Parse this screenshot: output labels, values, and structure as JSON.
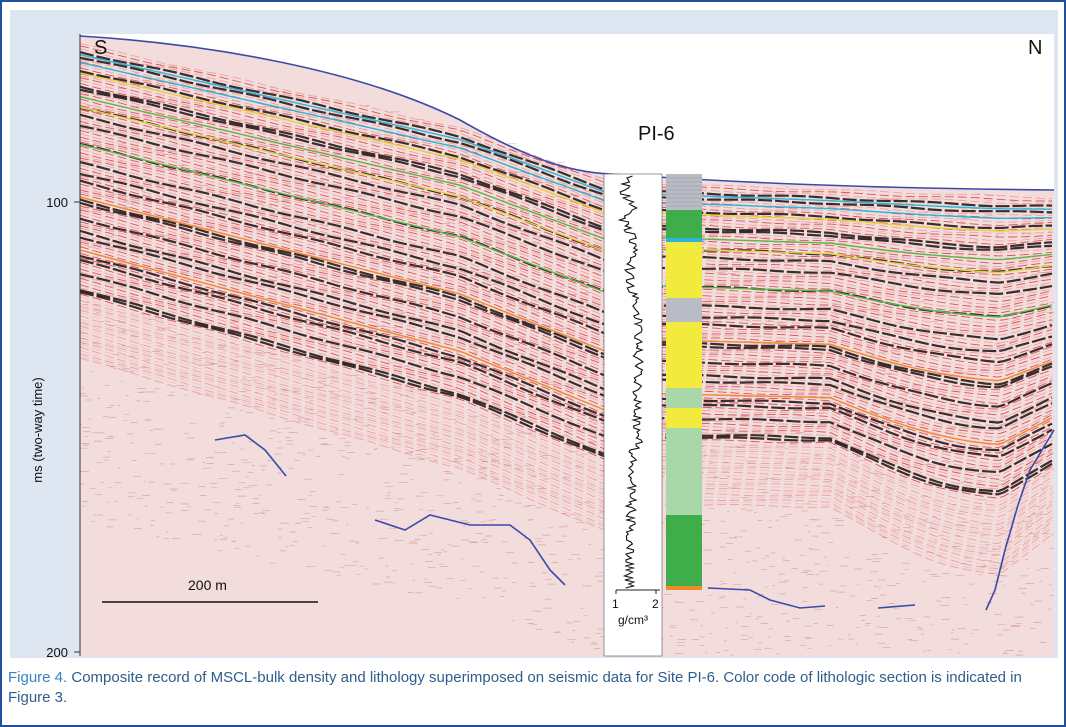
{
  "figure": {
    "direction_left": "S",
    "direction_right": "N",
    "site_label": "PI-6",
    "y_axis": {
      "label": "ms (two-way time)",
      "ticks": [
        "100",
        "200"
      ]
    },
    "scale_bar": {
      "label": "200 m"
    },
    "density_axis": {
      "ticks": [
        "1",
        "2"
      ],
      "unit": "g/cm³"
    }
  },
  "caption": {
    "figure_number": "Figure 4.",
    "text": " Composite record of MSCL-bulk density  and lithology superimposed on seismic  data for Site PI-6. Color code of lithologic section is indicated in Figure 3."
  },
  "colors": {
    "frame": "#1f4f9e",
    "panel": "#dde6f1",
    "seafloor": "#3a4aa8",
    "horizon_cyan": "#2bb6d9",
    "horizon_yellow": "#e8d23a",
    "horizon_green": "#56b94a",
    "horizon_orange": "#f08a2a",
    "lith_green": "#3fae4a",
    "lith_yellow": "#f2ea3c",
    "lith_gray": "#b9bcc4",
    "lith_lightgreen": "#a9d7a8"
  }
}
